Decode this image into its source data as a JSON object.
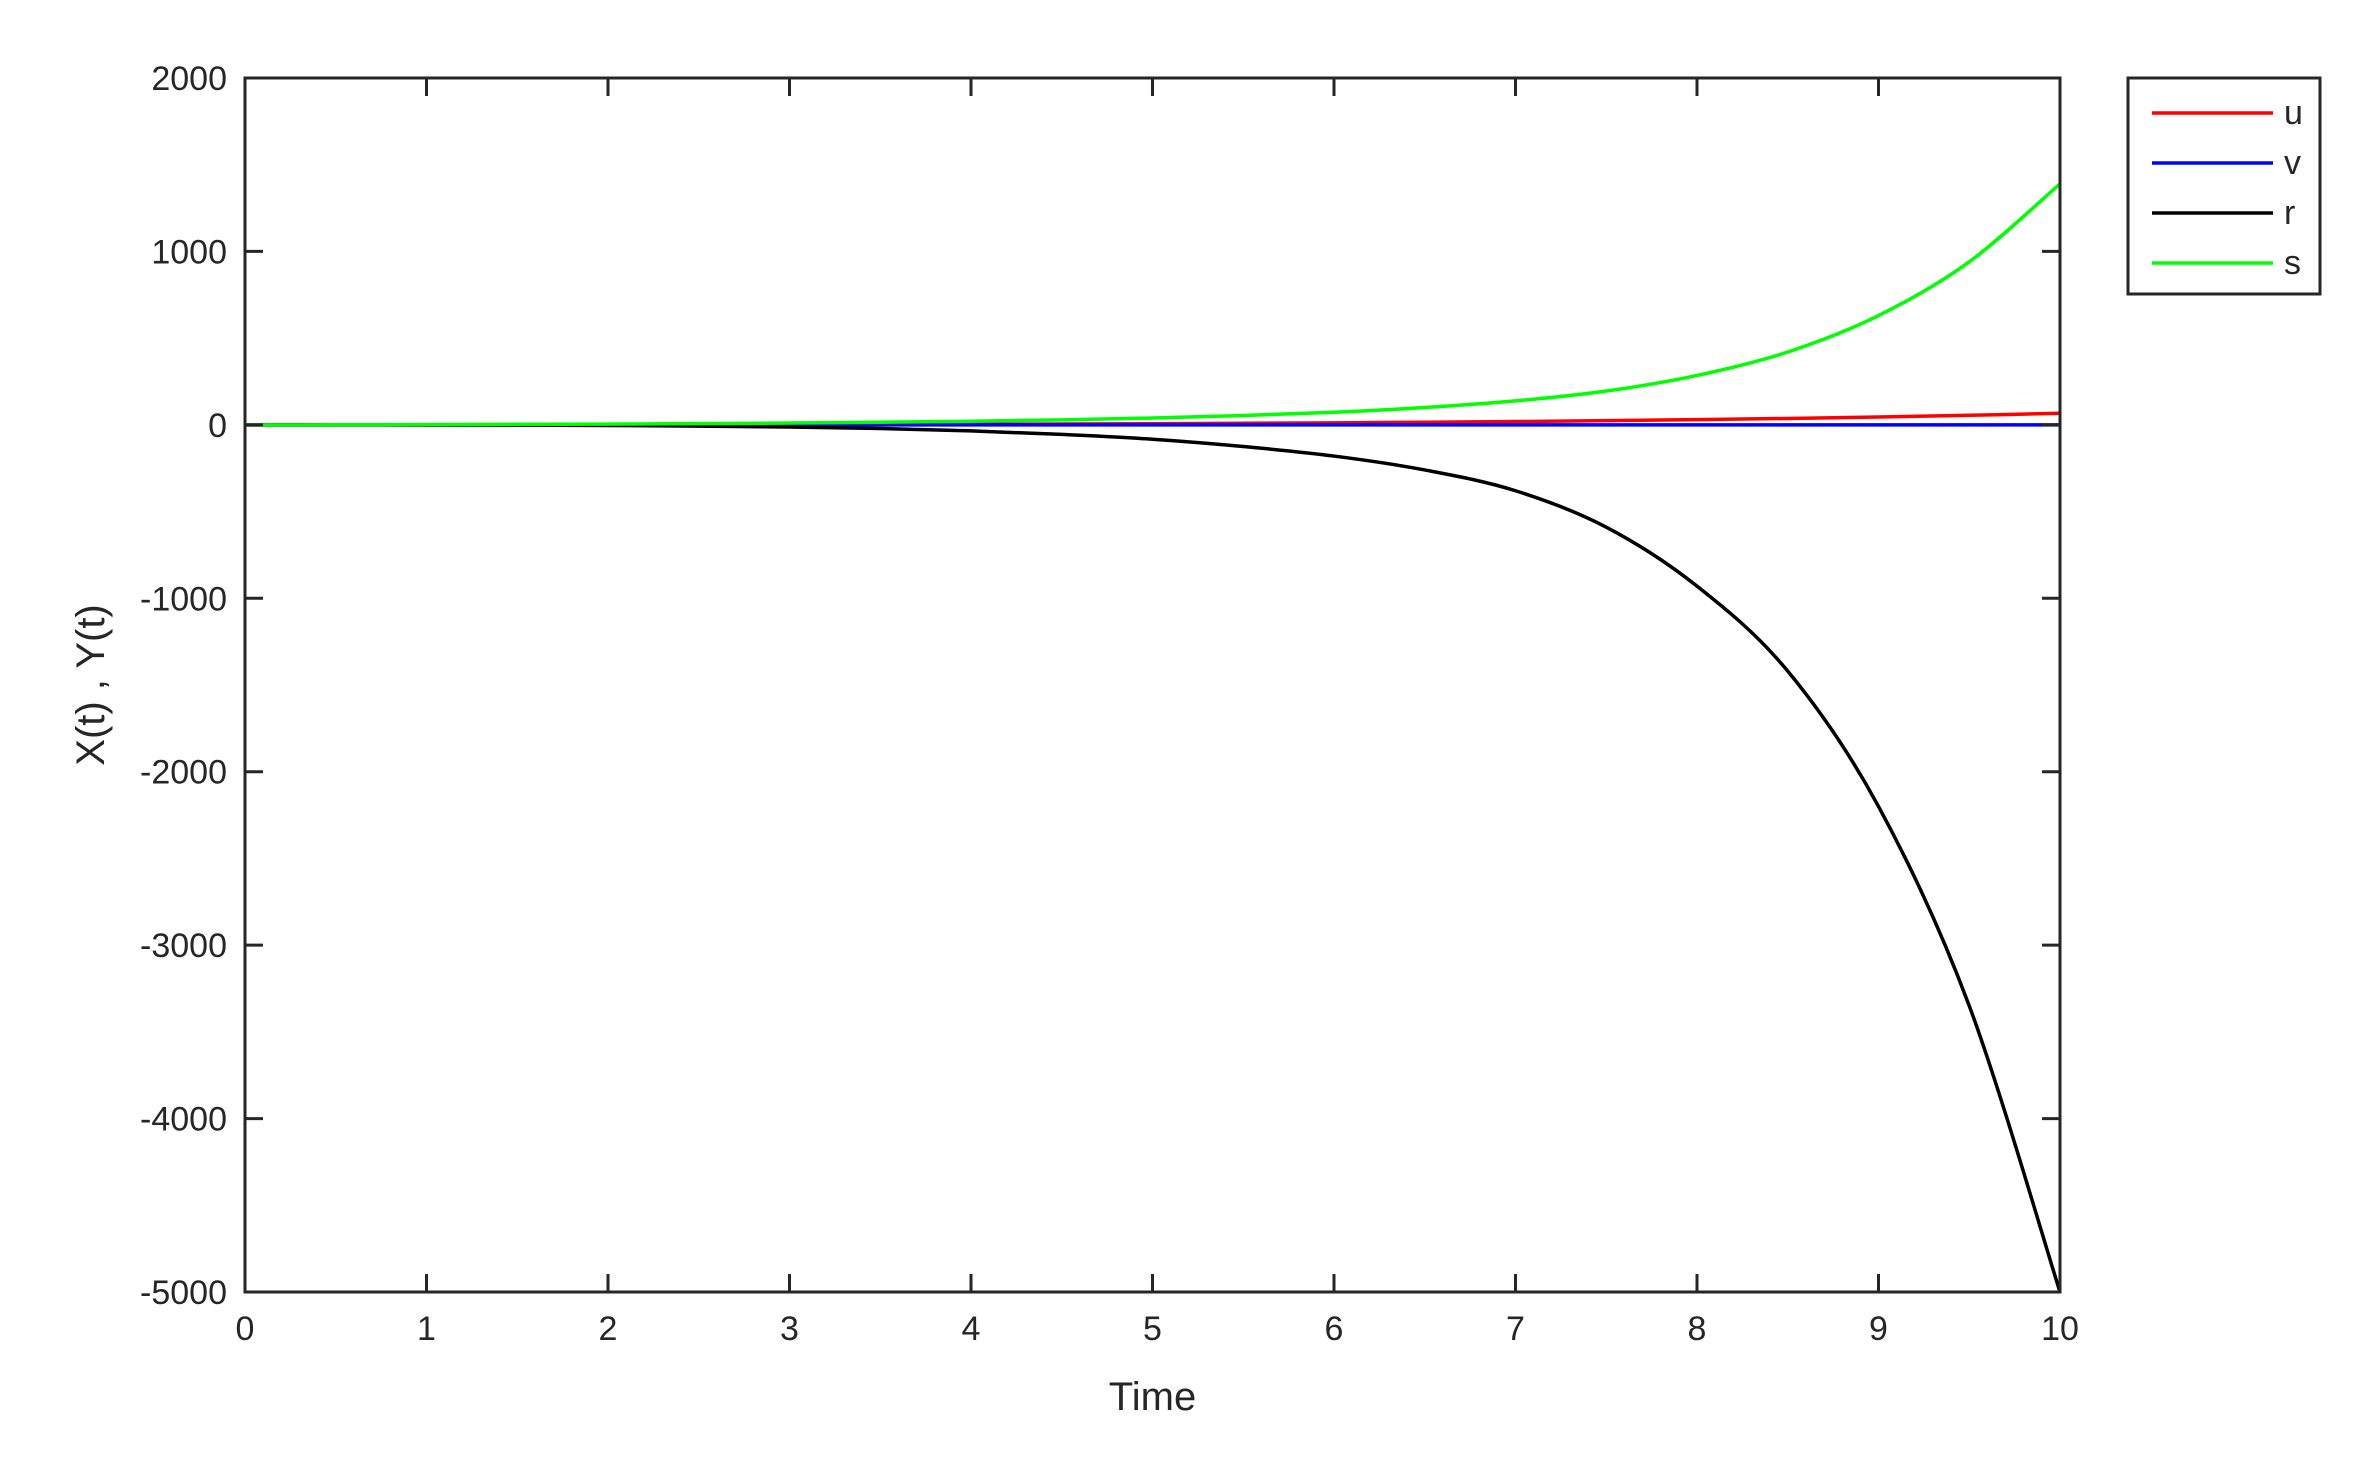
{
  "chart_data": {
    "type": "line",
    "title": "",
    "xlabel": "Time",
    "ylabel": "X(t) , Y(t)",
    "xlim": [
      0,
      10
    ],
    "ylim": [
      -5000,
      2000
    ],
    "xticks": [
      "0",
      "1",
      "2",
      "3",
      "4",
      "5",
      "6",
      "7",
      "8",
      "9",
      "10"
    ],
    "yticks": [
      "2000",
      "1000",
      "0",
      "-1000",
      "-2000",
      "-3000",
      "-4000",
      "-5000"
    ],
    "grid": false,
    "legend_position": "outside-top-right",
    "x": [
      0,
      0.5,
      1,
      1.5,
      2,
      2.5,
      3,
      3.5,
      4,
      4.5,
      5,
      5.5,
      6,
      6.5,
      7,
      7.5,
      8,
      8.5,
      9,
      9.5,
      10
    ],
    "series": [
      {
        "name": "u",
        "color": "#ff0000",
        "values": [
          0,
          0,
          0.1,
          0.2,
          0.5,
          0.9,
          1.5,
          2.3,
          3.4,
          4.8,
          6.6,
          8.9,
          11.7,
          15.1,
          19.2,
          24.1,
          30,
          37,
          45.3,
          55.1,
          66.6
        ]
      },
      {
        "name": "v",
        "color": "#0000ff",
        "values": [
          0,
          0,
          0,
          0,
          0,
          0,
          0,
          0,
          0,
          0,
          0,
          0,
          0,
          0,
          0,
          0,
          0,
          0,
          0,
          0,
          0
        ]
      },
      {
        "name": "r",
        "color": "#000000",
        "values": [
          0,
          -0.05,
          -0.5,
          -1.5,
          -3.5,
          -7,
          -12.5,
          -21,
          -35,
          -55,
          -83,
          -125,
          -180,
          -260,
          -380,
          -590,
          -930,
          -1420,
          -2200,
          -3350,
          -5000
        ]
      },
      {
        "name": "s",
        "color": "#00ff00",
        "values": [
          0,
          0.3,
          1.3,
          2.6,
          4.5,
          7,
          10.5,
          15,
          21,
          29,
          39.5,
          54,
          73,
          100,
          138,
          195,
          285,
          420,
          630,
          940,
          1390
        ]
      }
    ]
  }
}
